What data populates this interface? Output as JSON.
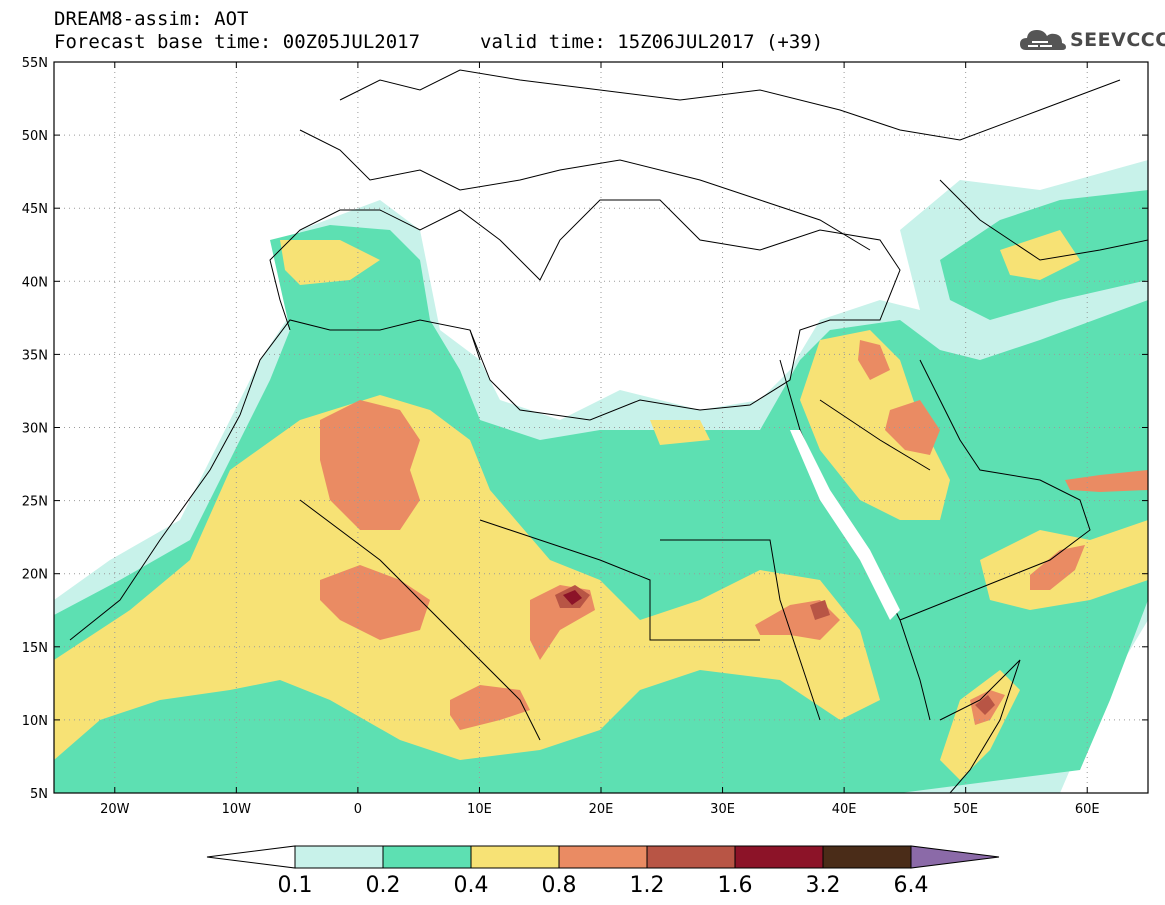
{
  "header": {
    "title_line1": "DREAM8-assim: AOT",
    "title_line2": "Forecast base time: 00Z05JUL2017",
    "valid_time": "valid time: 15Z06JUL2017 (+39)",
    "logo_text": "SEEVCCC"
  },
  "map": {
    "lat_labels": [
      "55N",
      "50N",
      "45N",
      "40N",
      "35N",
      "30N",
      "25N",
      "20N",
      "15N",
      "10N",
      "5N"
    ],
    "lat_values": [
      55,
      50,
      45,
      40,
      35,
      30,
      25,
      20,
      15,
      10,
      5
    ],
    "lon_labels": [
      "20W",
      "10W",
      "0",
      "10E",
      "20E",
      "30E",
      "40E",
      "50E",
      "60E"
    ],
    "lon_values": [
      -20,
      -10,
      0,
      10,
      20,
      30,
      40,
      50,
      60
    ],
    "lon_range": [
      -25,
      65
    ],
    "lat_range": [
      5,
      55
    ],
    "grid": true
  },
  "colorbar": {
    "labels": [
      "0.1",
      "0.2",
      "0.4",
      "0.8",
      "1.2",
      "1.6",
      "3.2",
      "6.4"
    ],
    "colors": [
      "#c8f2ea",
      "#5de0b2",
      "#f7e275",
      "#ea8b63",
      "#b85545",
      "#8c1328",
      "#4a2c18"
    ],
    "under_color": "#ffffff",
    "over_color": "#8b6aa8"
  },
  "colors": {
    "aot_01": "#c8f2ea",
    "aot_02": "#5de0b2",
    "aot_04": "#f7e275",
    "aot_08": "#ea8b63",
    "aot_12": "#b85545",
    "aot_16": "#8c1328"
  }
}
